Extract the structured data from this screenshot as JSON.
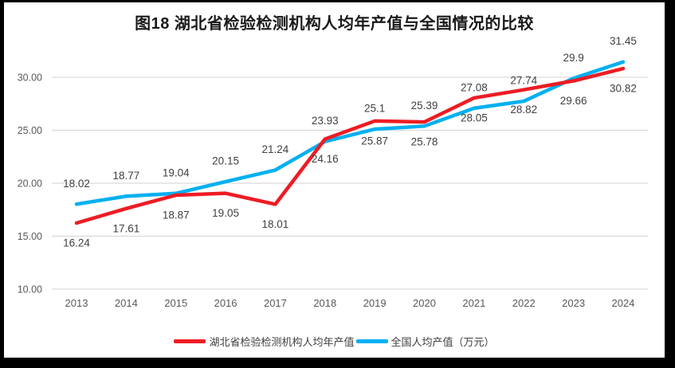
{
  "title": "图18  湖北省检验检测机构人均年产值与全国情况的比较",
  "colors": {
    "frame": "#000000",
    "panel_bg": "#ffffff",
    "grid": "#d9d9d9",
    "axis_text": "#595959",
    "data_label_text": "#404040",
    "title_text": "#1a1a1a"
  },
  "chart_data": {
    "type": "line",
    "x": [
      "2013",
      "2014",
      "2015",
      "2016",
      "2017",
      "2018",
      "2019",
      "2020",
      "2021",
      "2022",
      "2023",
      "2024"
    ],
    "series": [
      {
        "name": "湖北省检验检测机构人均年产值",
        "color": "#ED1C24",
        "values": [
          16.24,
          17.61,
          18.87,
          19.05,
          18.01,
          24.16,
          25.87,
          25.78,
          28.05,
          28.82,
          29.66,
          30.82
        ],
        "labels": [
          "16.24",
          "17.61",
          "18.87",
          "19.05",
          "18.01",
          "24.16",
          "25.87",
          "25.78",
          "28.05",
          "28.82",
          "29.66",
          "30.82"
        ],
        "label_side": "below"
      },
      {
        "name": "全国人均产值（万元）",
        "color": "#00B0F0",
        "values": [
          18.02,
          18.77,
          19.04,
          20.15,
          21.24,
          23.93,
          25.1,
          25.39,
          27.08,
          27.74,
          29.9,
          31.45
        ],
        "labels": [
          "18.02",
          "18.77",
          "19.04",
          "20.15",
          "21.24",
          "23.93",
          "25.1",
          "25.39",
          "27.08",
          "27.74",
          "29.9",
          "31.45"
        ],
        "label_side": "above"
      }
    ],
    "ylim": [
      10,
      30
    ],
    "ytick_step": 5,
    "yticks": [
      "30.00",
      "25.00",
      "20.00",
      "15.00",
      "10.00"
    ],
    "grid": true,
    "legend_position": "bottom"
  }
}
